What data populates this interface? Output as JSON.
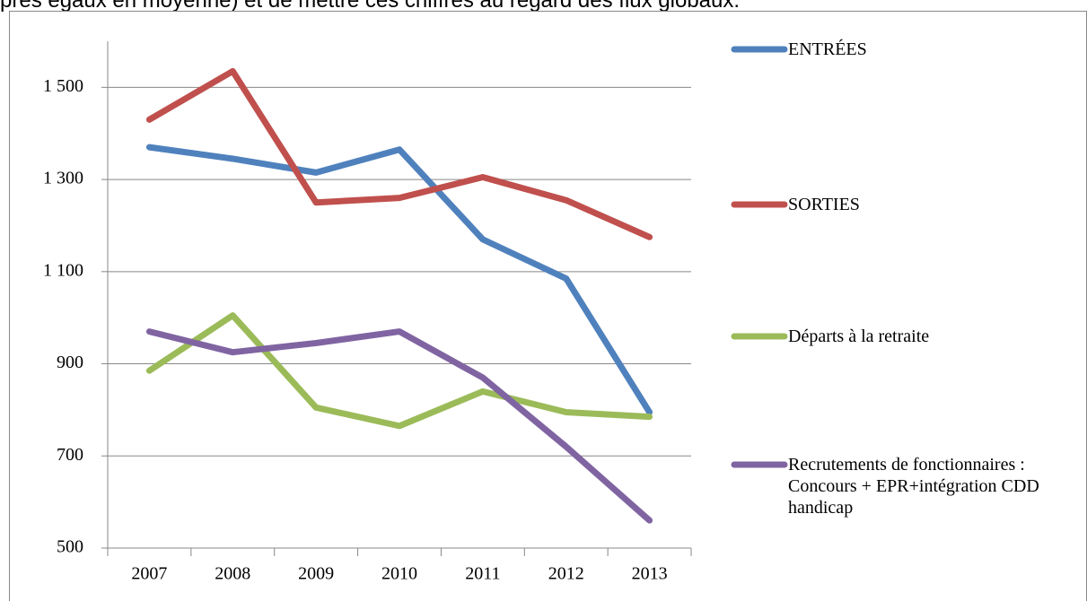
{
  "caption": "près égaux en moyenne) et de mettre ces chiffres au regard des flux globaux.",
  "chart_data": {
    "type": "line",
    "categories": [
      "2007",
      "2008",
      "2009",
      "2010",
      "2011",
      "2012",
      "2013"
    ],
    "series": [
      {
        "name": "ENTRÉES",
        "color": "#4f81bd",
        "values": [
          1370,
          1345,
          1315,
          1365,
          1170,
          1085,
          795
        ]
      },
      {
        "name": "SORTIES",
        "color": "#c0504d",
        "values": [
          1430,
          1535,
          1250,
          1260,
          1305,
          1255,
          1175
        ]
      },
      {
        "name": "Départs à la retraite",
        "color": "#9bbb59",
        "values": [
          885,
          1005,
          805,
          765,
          840,
          795,
          785
        ]
      },
      {
        "name": "Recrutements de fonctionnaires : Concours + EPR+intégration CDD handicap",
        "color": "#8064a2",
        "values": [
          970,
          925,
          945,
          970,
          870,
          720,
          560
        ]
      }
    ],
    "ylim": [
      500,
      1600
    ],
    "yticks": [
      {
        "value": 500,
        "label": "500"
      },
      {
        "value": 700,
        "label": "700"
      },
      {
        "value": 900,
        "label": "900"
      },
      {
        "value": 1100,
        "label": "1 100"
      },
      {
        "value": 1300,
        "label": "1 300"
      },
      {
        "value": 1500,
        "label": "1 500"
      }
    ],
    "grid": true,
    "legend": "right"
  }
}
